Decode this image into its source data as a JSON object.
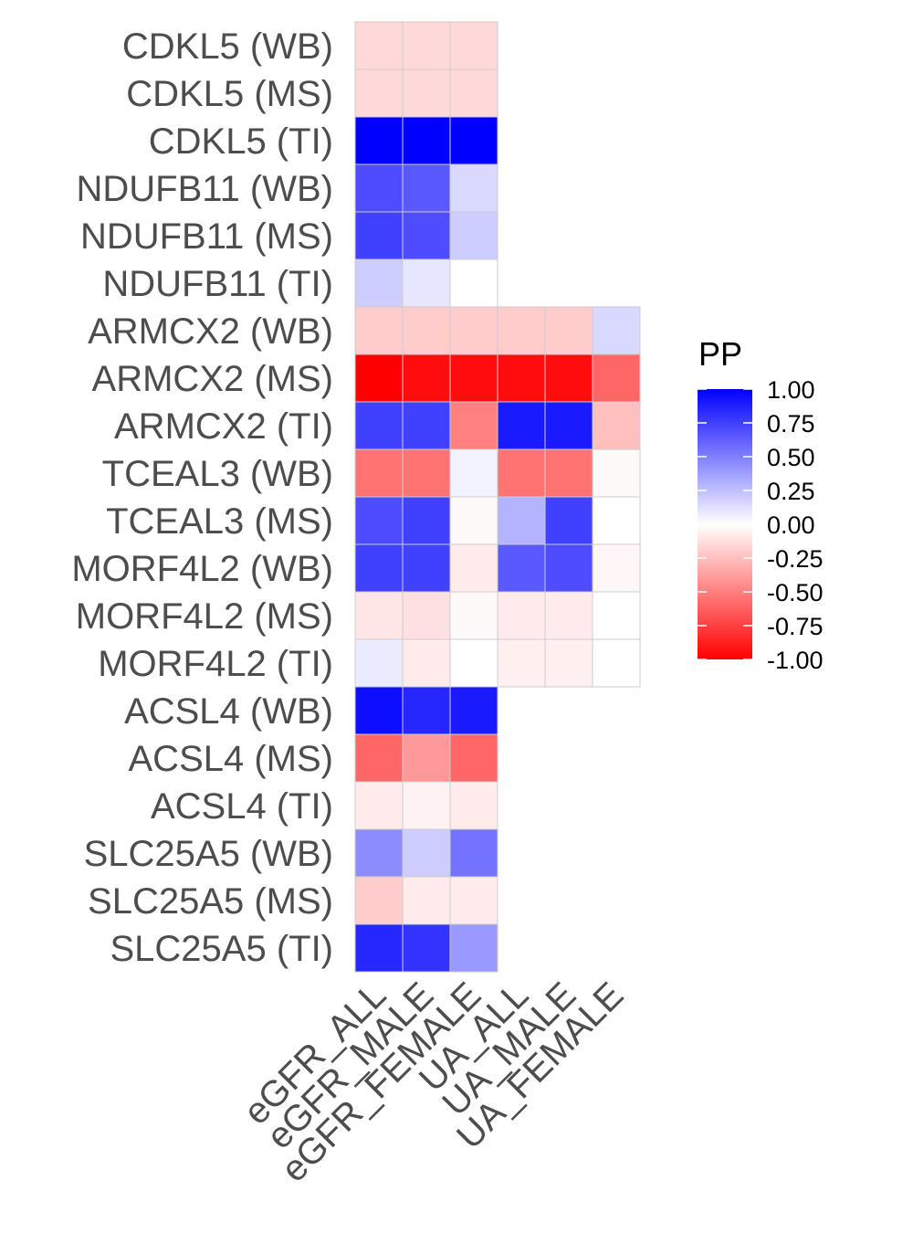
{
  "chart_data": {
    "type": "heatmap",
    "rows": [
      "CDKL5 (WB)",
      "CDKL5 (MS)",
      "CDKL5 (TI)",
      "NDUFB11 (WB)",
      "NDUFB11 (MS)",
      "NDUFB11 (TI)",
      "ARMCX2 (WB)",
      "ARMCX2 (MS)",
      "ARMCX2 (TI)",
      "TCEAL3 (WB)",
      "TCEAL3 (MS)",
      "MORF4L2 (WB)",
      "MORF4L2 (MS)",
      "MORF4L2 (TI)",
      "ACSL4 (WB)",
      "ACSL4 (MS)",
      "ACSL4 (TI)",
      "SLC25A5 (WB)",
      "SLC25A5 (MS)",
      "SLC25A5 (TI)"
    ],
    "columns": [
      "eGFR_ALL",
      "eGFR_MALE",
      "eGFR_FEMALE",
      "UA_ALL",
      "UA_MALE",
      "UA_FEMALE"
    ],
    "values": [
      [
        -0.15,
        -0.15,
        -0.15,
        null,
        null,
        null
      ],
      [
        -0.15,
        -0.15,
        -0.15,
        null,
        null,
        null
      ],
      [
        1.0,
        1.0,
        1.0,
        null,
        null,
        null
      ],
      [
        0.7,
        0.65,
        0.15,
        null,
        null,
        null
      ],
      [
        0.75,
        0.7,
        0.2,
        null,
        null,
        null
      ],
      [
        0.2,
        0.1,
        0.0,
        null,
        null,
        null
      ],
      [
        -0.2,
        -0.2,
        -0.2,
        -0.2,
        -0.2,
        0.15
      ],
      [
        -1.0,
        -0.95,
        -0.95,
        -0.95,
        -0.95,
        -0.6
      ],
      [
        0.75,
        0.75,
        -0.5,
        0.9,
        0.9,
        -0.25
      ],
      [
        -0.55,
        -0.55,
        0.05,
        -0.55,
        -0.55,
        -0.02
      ],
      [
        0.7,
        0.75,
        -0.02,
        0.3,
        0.75,
        0.0
      ],
      [
        0.75,
        0.75,
        -0.08,
        0.65,
        0.7,
        -0.03
      ],
      [
        -0.1,
        -0.12,
        -0.02,
        -0.08,
        -0.08,
        0.0
      ],
      [
        0.08,
        -0.08,
        0.0,
        -0.06,
        -0.06,
        0.0
      ],
      [
        0.95,
        0.85,
        0.9,
        null,
        null,
        null
      ],
      [
        -0.6,
        -0.4,
        -0.6,
        null,
        null,
        null
      ],
      [
        -0.08,
        -0.05,
        -0.08,
        null,
        null,
        null
      ],
      [
        0.45,
        0.2,
        0.55,
        null,
        null,
        null
      ],
      [
        -0.2,
        -0.08,
        -0.08,
        null,
        null,
        null
      ],
      [
        0.85,
        0.8,
        0.4,
        null,
        null,
        null
      ]
    ],
    "legend": {
      "title": "PP",
      "ticks": [
        "1.00",
        "0.75",
        "0.50",
        "0.25",
        "0.00",
        "-0.25",
        "-0.50",
        "-0.75",
        "-1.00"
      ],
      "range": [
        -1,
        1
      ],
      "position": "right"
    },
    "colors": {
      "high": "#0000ff",
      "mid": "#ffffff",
      "low": "#ff0000",
      "grid": "#cccccc"
    }
  }
}
